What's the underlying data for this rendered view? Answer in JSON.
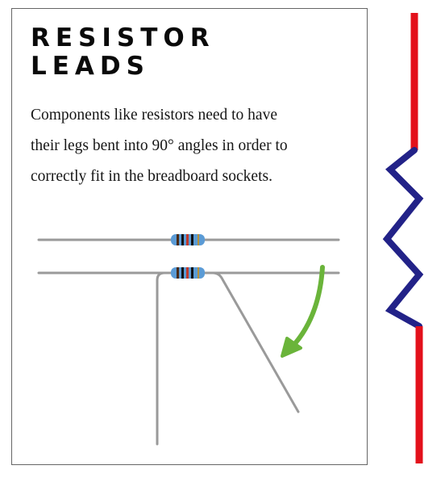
{
  "title": {
    "line1": "RESISTOR",
    "line2": "LEADS"
  },
  "body": {
    "line1": "Components like resistors need to have",
    "line2": "their legs bent into 90° angles in order to",
    "line3": "correctly fit in the breadboard sockets."
  },
  "colors": {
    "lead": "#9a9a9a",
    "resistor_body": "#5b9bd5",
    "arrow": "#6ab43a",
    "schematic_wire": "#e3111b",
    "schematic_zigzag": "#222288",
    "border": "#666666"
  },
  "icons": {
    "arrow": "curved-arrow-down-left-icon",
    "schematic": "resistor-symbol-icon"
  }
}
